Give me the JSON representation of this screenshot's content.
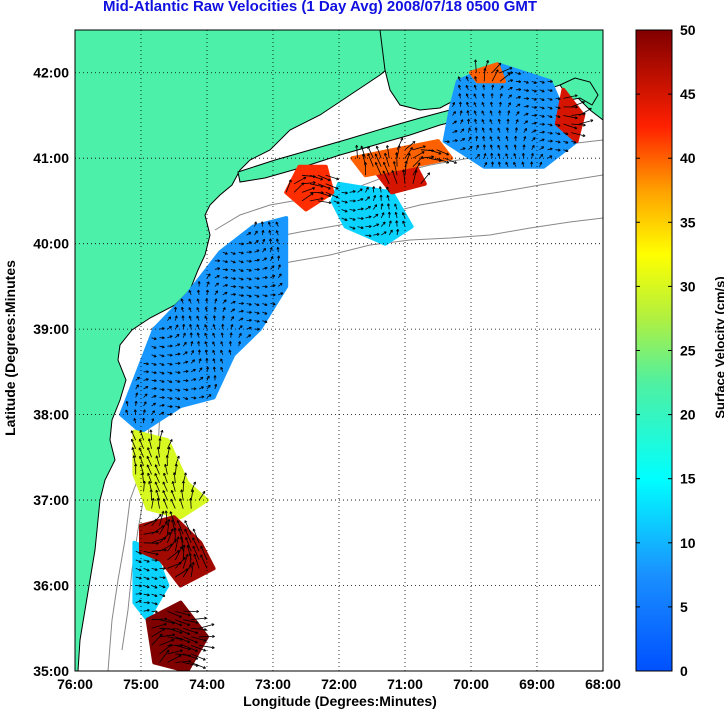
{
  "title": "Mid-Atlantic Raw Velocities (1 Day Avg) 2008/07/18 0500 GMT",
  "xlabel": "Longitude (Degrees:Minutes)",
  "ylabel": "Latitude (Degrees:Minutes",
  "colorbar": {
    "label": "Surface Velocity (cm/s)",
    "ticks": [
      "50",
      "45",
      "40",
      "35",
      "30",
      "25",
      "20",
      "15",
      "10",
      "5",
      "0"
    ],
    "range": [
      0,
      50
    ],
    "colormap": "jet"
  },
  "colors": {
    "land": "#4cf0a8",
    "ocean": "#ffffff",
    "title": "#1010e0",
    "isobath": "#888888"
  },
  "chart_data": {
    "type": "heatmap",
    "xlim": [
      -76,
      -68
    ],
    "ylim": [
      35,
      42.5
    ],
    "x_ticks": [
      "76:00",
      "75:00",
      "74:00",
      "73:00",
      "72:00",
      "71:00",
      "70:00",
      "69:00",
      "68:00"
    ],
    "y_ticks": [
      "35:00",
      "36:00",
      "37:00",
      "38:00",
      "39:00",
      "40:00",
      "41:00",
      "42:00"
    ],
    "grid": true,
    "regions": [
      {
        "lon": -74.5,
        "lat": 35.2,
        "speed": 50
      },
      {
        "lon": -74.7,
        "lat": 36.5,
        "speed": 48
      },
      {
        "lon": -74.8,
        "lat": 37.3,
        "speed": 30
      },
      {
        "lon": -74.5,
        "lat": 38.4,
        "speed": 8
      },
      {
        "lon": -73.6,
        "lat": 39.2,
        "speed": 6
      },
      {
        "lon": -72.9,
        "lat": 39.9,
        "speed": 8
      },
      {
        "lon": -72.4,
        "lat": 40.6,
        "speed": 40
      },
      {
        "lon": -71.3,
        "lat": 40.5,
        "speed": 12
      },
      {
        "lon": -70.9,
        "lat": 40.8,
        "speed": 45
      },
      {
        "lon": -69.4,
        "lat": 41.5,
        "speed": 8
      },
      {
        "lon": -68.6,
        "lat": 41.5,
        "speed": 45
      }
    ]
  }
}
